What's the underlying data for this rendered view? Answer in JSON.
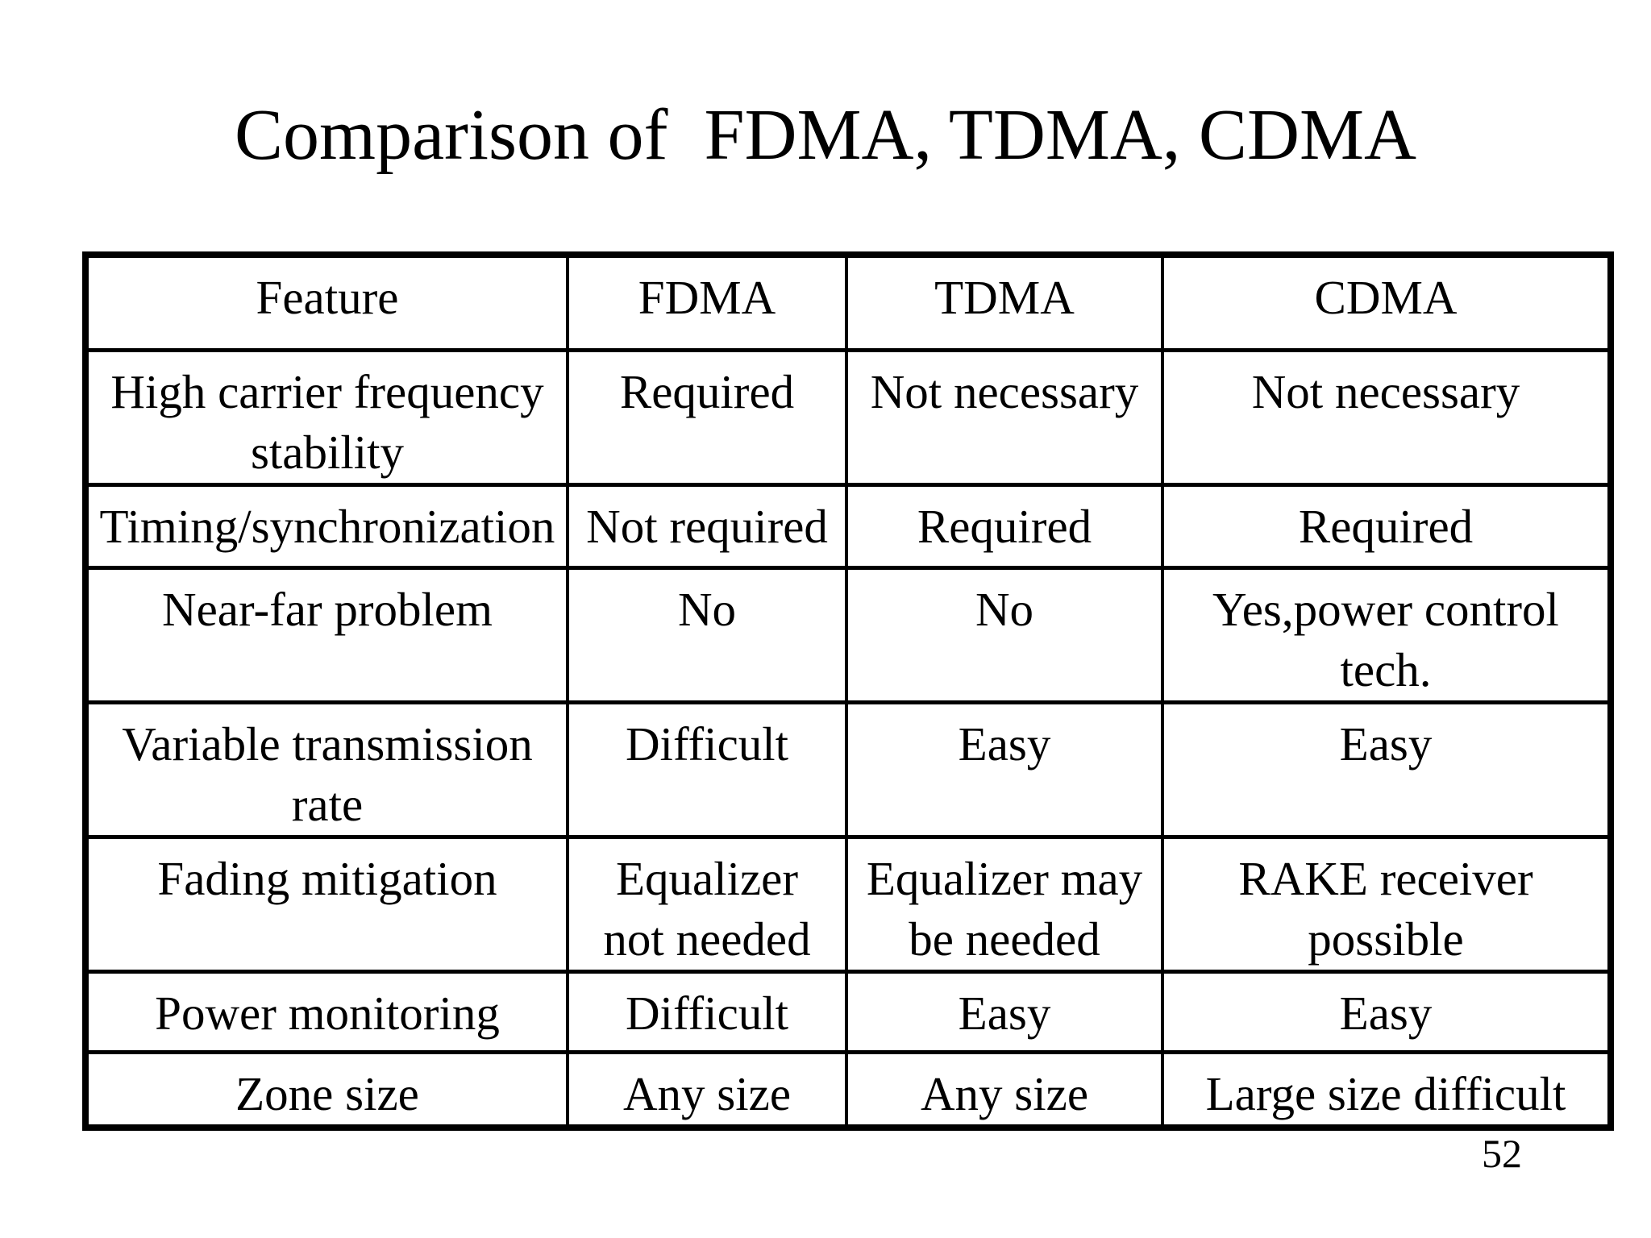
{
  "title": "Comparison of  FDMA, TDMA, CDMA",
  "page_number": "52",
  "colors": {
    "background": "#ffffff",
    "text": "#000000",
    "table_border": "#000000"
  },
  "table": {
    "headers": [
      "Feature",
      "FDMA",
      "TDMA",
      "CDMA"
    ],
    "rows": [
      {
        "feature": "High carrier frequency\nstability",
        "fdma": "Required",
        "tdma": "Not necessary",
        "cdma": "Not necessary"
      },
      {
        "feature": "Timing/synchronization",
        "fdma": "Not required",
        "tdma": "Required",
        "cdma": "Required"
      },
      {
        "feature": "Near-far problem",
        "fdma": "No",
        "tdma": "No",
        "cdma": "Yes,power control\ntech."
      },
      {
        "feature": "Variable transmission\nrate",
        "fdma": "Difficult",
        "tdma": "Easy",
        "cdma": "Easy"
      },
      {
        "feature": "Fading mitigation",
        "fdma": "Equalizer\nnot needed",
        "tdma": "Equalizer may\nbe needed",
        "cdma": "RAKE receiver\npossible"
      },
      {
        "feature": "Power monitoring",
        "fdma": "Difficult",
        "tdma": "Easy",
        "cdma": "Easy"
      },
      {
        "feature": "Zone size",
        "fdma": "Any size",
        "tdma": "Any size",
        "cdma": "Large size difficult"
      }
    ]
  }
}
